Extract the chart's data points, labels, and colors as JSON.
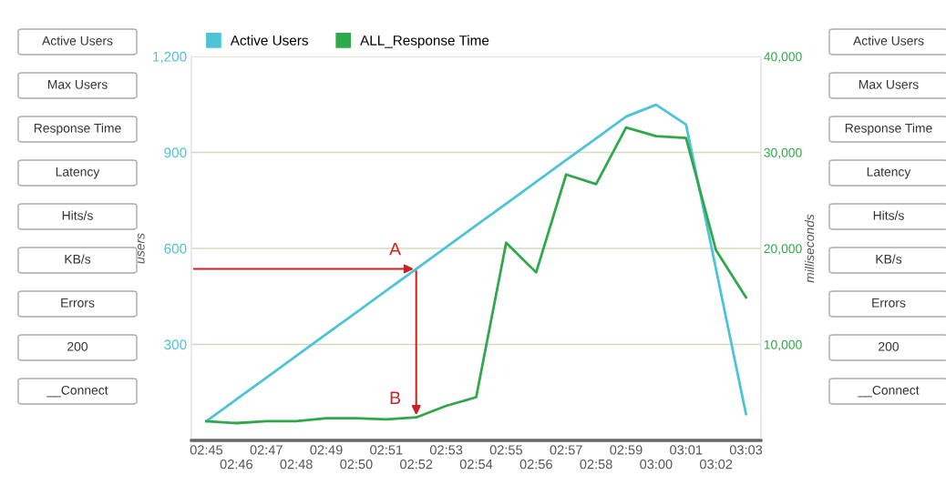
{
  "chart_data": {
    "type": "line",
    "categories": [
      "02:45",
      "02:46",
      "02:47",
      "02:48",
      "02:49",
      "02:50",
      "02:51",
      "02:52",
      "02:53",
      "02:54",
      "02:55",
      "02:56",
      "02:57",
      "02:58",
      "02:59",
      "03:00",
      "03:01",
      "03:02",
      "03:03"
    ],
    "series": [
      {
        "name": "Active Users",
        "color": "#4cc4d8",
        "values": [
          60,
          128,
          196,
          264,
          332,
          400,
          468,
          536,
          604,
          672,
          740,
          808,
          876,
          944,
          1012,
          1049,
          987,
          535,
          82
        ]
      },
      {
        "name": "ALL_Response Time",
        "color": "#2ea84a",
        "axis": "y2",
        "values": [
          2000,
          1800,
          2000,
          2000,
          2300,
          2300,
          2200,
          2400,
          3600,
          4500,
          20600,
          17500,
          27700,
          26700,
          32600,
          31700,
          31500,
          19800,
          14900
        ]
      }
    ],
    "ylabel": "users",
    "y2label": "milliseconds",
    "ylim": [
      0,
      1200
    ],
    "yticks": [
      {
        "value": 0,
        "label": null
      },
      {
        "value": 300,
        "label": "300"
      },
      {
        "value": 600,
        "label": "600"
      },
      {
        "value": 900,
        "label": "900"
      },
      {
        "value": 1200,
        "label": "1,200"
      }
    ],
    "y2lim": [
      0,
      40000
    ],
    "y2ticks": [
      {
        "value": 0,
        "label": null
      },
      {
        "value": 10000,
        "label": "10,000"
      },
      {
        "value": 20000,
        "label": "20,000"
      },
      {
        "value": 30000,
        "label": "30,000"
      },
      {
        "value": 40000,
        "label": "40,000"
      }
    ],
    "grid": "y",
    "legend": "top left",
    "marker": "none",
    "line_style": "solid",
    "annotations": [
      {
        "text": "A",
        "x": "02:52",
        "y": 536
      },
      {
        "text": "B",
        "x": "02:52",
        "y": 71
      },
      "Active Users",
      "Max Users",
      "Response Time",
      "Latency",
      "Hits/s",
      "KB/s",
      "Errors",
      "200",
      "__Connect",
      "Active Users",
      "Max Users",
      "Response Time",
      "Latency",
      "Hits/s",
      "KB/s",
      "Errors",
      "200",
      "__Connect"
    ]
  }
}
